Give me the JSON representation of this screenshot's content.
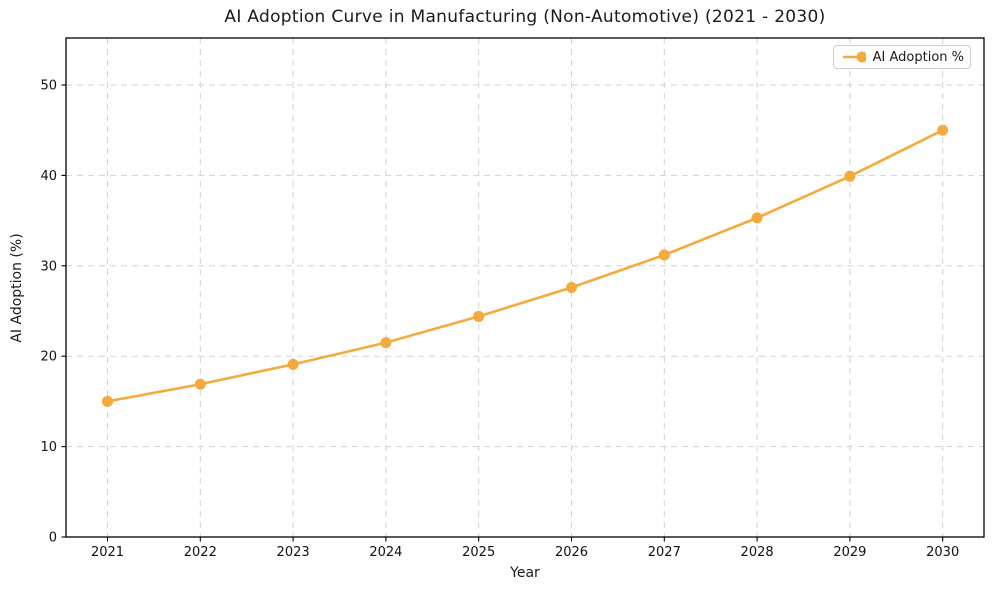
{
  "chart_data": {
    "type": "line",
    "title": "AI Adoption Curve in Manufacturing (Non-Automotive) (2021 - 2030)",
    "xlabel": "Year",
    "ylabel": "AI Adoption (%)",
    "x": [
      2021,
      2022,
      2023,
      2024,
      2025,
      2026,
      2027,
      2028,
      2029,
      2030
    ],
    "series": [
      {
        "name": "AI Adoption %",
        "values": [
          15.0,
          16.9,
          19.1,
          21.5,
          24.4,
          27.6,
          31.2,
          35.3,
          39.9,
          45.0
        ],
        "color": "#F4AA3C",
        "marker": "circle"
      }
    ],
    "ylim": [
      0,
      55.2
    ],
    "yticks": [
      0,
      10,
      20,
      30,
      40,
      50
    ],
    "grid": true,
    "grid_style": "dashed",
    "legend": {
      "position": "upper right",
      "entries": [
        "AI Adoption %"
      ]
    }
  },
  "colors": {
    "accent": "#F4AA3C",
    "grid": "#D3D3D3",
    "axis": "#000000",
    "text": "#1a1a1a",
    "legend_border": "#cccccc",
    "background": "#ffffff"
  }
}
